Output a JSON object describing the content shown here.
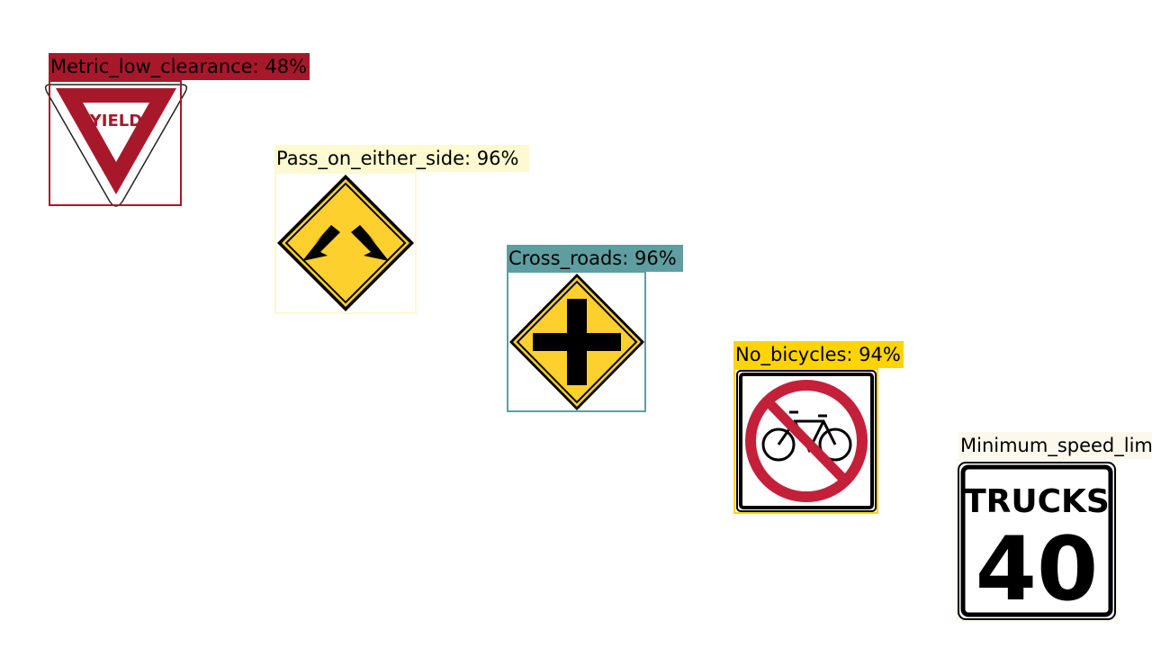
{
  "detections": [
    {
      "label": "Metric_low_clearance: 48%",
      "color": "#a8182b"
    },
    {
      "label": "Pass_on_either_side: 96%",
      "color": "#fdf9d0"
    },
    {
      "label": "Cross_roads: 96%",
      "color": "#5f9ea0"
    },
    {
      "label": "No_bicycles: 94%",
      "color": "#ffd400"
    },
    {
      "label": "Minimum_speed_lim",
      "color": "#fdf8ec"
    }
  ],
  "signs": {
    "yield": {
      "text": "YIELD",
      "icon": "yield-sign"
    },
    "pass_either_side": {
      "icon": "diverging-arrows-sign"
    },
    "cross_roads": {
      "icon": "crossroads-sign"
    },
    "no_bicycles": {
      "icon": "no-bicycles-sign"
    },
    "trucks_speed": {
      "line1": "TRUCKS",
      "line2": "40",
      "icon": "trucks-speed-sign"
    }
  },
  "colors": {
    "sign_red": "#a8182b",
    "warning_yellow": "#fdd02e",
    "prohibition_red": "#c4203a"
  }
}
